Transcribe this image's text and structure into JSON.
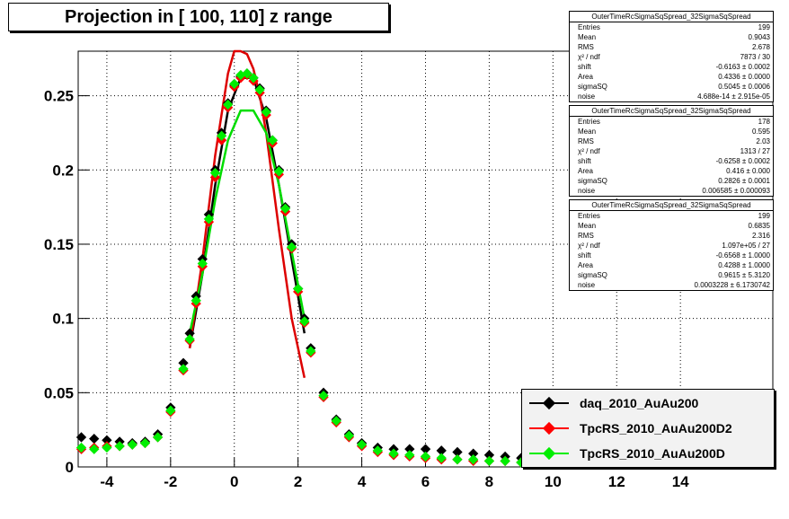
{
  "chart_data": {
    "type": "scatter",
    "title": "Projection in [ 100, 110] z range",
    "xlim": [
      -4.9,
      16.9
    ],
    "ylim": [
      0,
      0.28
    ],
    "x_ticks": [
      -4,
      -2,
      0,
      2,
      4,
      6,
      8,
      10,
      12,
      14
    ],
    "y_ticks": [
      0,
      0.05,
      0.1,
      0.15,
      0.2,
      0.25
    ],
    "y_tick_labels": [
      "0",
      "0.05",
      "0.1",
      "0.15",
      "0.2",
      "0.25"
    ],
    "grid": true,
    "legend_position": "bottom-right",
    "series": [
      {
        "name": "daq_2010_AuAu200",
        "color": "#000000",
        "x": [
          -4.8,
          -4.4,
          -4,
          -3.6,
          -3.2,
          -2.8,
          -2.4,
          -2,
          -1.6,
          -1.4,
          -1.2,
          -1,
          -0.8,
          -0.6,
          -0.4,
          -0.2,
          0,
          0.2,
          0.4,
          0.6,
          0.8,
          1,
          1.2,
          1.4,
          1.6,
          1.8,
          2,
          2.2,
          2.4,
          2.8,
          3.2,
          3.6,
          4,
          4.5,
          5,
          5.5,
          6,
          6.5,
          7,
          7.5,
          8,
          8.5,
          9,
          9.5,
          10
        ],
        "y": [
          0.02,
          0.019,
          0.018,
          0.017,
          0.016,
          0.017,
          0.022,
          0.04,
          0.07,
          0.09,
          0.115,
          0.14,
          0.17,
          0.2,
          0.225,
          0.245,
          0.257,
          0.263,
          0.265,
          0.262,
          0.255,
          0.24,
          0.22,
          0.2,
          0.175,
          0.15,
          0.12,
          0.1,
          0.08,
          0.05,
          0.032,
          0.022,
          0.016,
          0.013,
          0.012,
          0.012,
          0.012,
          0.011,
          0.01,
          0.009,
          0.008,
          0.007,
          0.006,
          0.005,
          0.004
        ]
      },
      {
        "name": "TpcRS_2010_AuAu200D2",
        "color": "#ff0000",
        "x": [
          -4.8,
          -4.4,
          -4,
          -3.6,
          -3.2,
          -2.8,
          -2.4,
          -2,
          -1.6,
          -1.4,
          -1.2,
          -1,
          -0.8,
          -0.6,
          -0.4,
          -0.2,
          0,
          0.2,
          0.4,
          0.6,
          0.8,
          1,
          1.2,
          1.4,
          1.6,
          1.8,
          2,
          2.2,
          2.4,
          2.8,
          3.2,
          3.6,
          4,
          4.5,
          5,
          5.5,
          6,
          6.5,
          7,
          7.5,
          8,
          8.5,
          9
        ],
        "y": [
          0.012,
          0.013,
          0.014,
          0.014,
          0.015,
          0.016,
          0.02,
          0.037,
          0.065,
          0.085,
          0.11,
          0.135,
          0.165,
          0.195,
          0.22,
          0.242,
          0.256,
          0.262,
          0.264,
          0.26,
          0.252,
          0.237,
          0.218,
          0.197,
          0.172,
          0.147,
          0.118,
          0.097,
          0.077,
          0.047,
          0.03,
          0.02,
          0.014,
          0.01,
          0.008,
          0.007,
          0.006,
          0.005,
          0.005,
          0.004,
          0.004,
          0.004,
          0.003
        ]
      },
      {
        "name": "TpcRS_2010_AuAu200D",
        "color": "#00ee00",
        "x": [
          -4.8,
          -4.4,
          -4,
          -3.6,
          -3.2,
          -2.8,
          -2.4,
          -2,
          -1.6,
          -1.4,
          -1.2,
          -1,
          -0.8,
          -0.6,
          -0.4,
          -0.2,
          0,
          0.2,
          0.4,
          0.6,
          0.8,
          1,
          1.2,
          1.4,
          1.6,
          1.8,
          2,
          2.2,
          2.4,
          2.8,
          3.2,
          3.6,
          4,
          4.5,
          5,
          5.5,
          6,
          6.5,
          7,
          7.5,
          8,
          8.5,
          9
        ],
        "y": [
          0.013,
          0.012,
          0.013,
          0.014,
          0.015,
          0.016,
          0.02,
          0.038,
          0.066,
          0.086,
          0.112,
          0.137,
          0.167,
          0.198,
          0.223,
          0.244,
          0.258,
          0.264,
          0.265,
          0.262,
          0.254,
          0.239,
          0.22,
          0.199,
          0.174,
          0.148,
          0.12,
          0.098,
          0.078,
          0.048,
          0.031,
          0.021,
          0.015,
          0.011,
          0.009,
          0.008,
          0.007,
          0.006,
          0.005,
          0.005,
          0.004,
          0.004,
          0.003
        ]
      }
    ],
    "fit_curves": [
      {
        "color": "#000000",
        "x": [
          -1.4,
          -1,
          -0.6,
          -0.2,
          0.2,
          0.6,
          1,
          1.4,
          1.8,
          2.2
        ],
        "y": [
          0.08,
          0.13,
          0.19,
          0.24,
          0.262,
          0.262,
          0.235,
          0.19,
          0.14,
          0.09
        ]
      },
      {
        "color": "#dd0000",
        "x": [
          -1.4,
          -1,
          -0.6,
          -0.2,
          0,
          0.2,
          0.4,
          0.6,
          0.8,
          1,
          1.4,
          1.8,
          2.2
        ],
        "y": [
          0.08,
          0.14,
          0.21,
          0.265,
          0.28,
          0.28,
          0.278,
          0.268,
          0.25,
          0.225,
          0.16,
          0.1,
          0.06
        ]
      },
      {
        "color": "#00dd00",
        "x": [
          -1.4,
          -1,
          -0.6,
          -0.2,
          0.2,
          0.6,
          1,
          1.4,
          1.8,
          2.2
        ],
        "y": [
          0.09,
          0.13,
          0.18,
          0.22,
          0.24,
          0.24,
          0.225,
          0.19,
          0.145,
          0.1
        ]
      }
    ]
  },
  "title": "Projection in [ 100, 110] z range",
  "stats": [
    {
      "title": "OuterTimeRcSigmaSqSpread_32SigmaSqSpread",
      "rows": [
        [
          "Entries",
          "199"
        ],
        [
          "Mean",
          "0.9043"
        ],
        [
          "RMS",
          "2.678"
        ],
        [
          "χ² / ndf",
          "7873 / 30"
        ],
        [
          "shift",
          "-0.6163 ± 0.0002"
        ],
        [
          "Area",
          "0.4336 ± 0.0000"
        ],
        [
          "sigmaSQ",
          "0.5045 ± 0.0006"
        ],
        [
          "noise",
          "4.688e-14 ± 2.915e-05"
        ]
      ]
    },
    {
      "title": "OuterTimeRcSigmaSqSpread_32SigmaSqSpread",
      "rows": [
        [
          "Entries",
          "178"
        ],
        [
          "Mean",
          "0.595"
        ],
        [
          "RMS",
          "2.03"
        ],
        [
          "χ² / ndf",
          "1313 / 27"
        ],
        [
          "shift",
          "-0.6258 ± 0.0002"
        ],
        [
          "Area",
          "0.416 ± 0.000"
        ],
        [
          "sigmaSQ",
          "0.2826 ± 0.0001"
        ],
        [
          "noise",
          "0.006585 ± 0.000093"
        ]
      ]
    },
    {
      "title": "OuterTimeRcSigmaSqSpread_32SigmaSqSpread",
      "rows": [
        [
          "Entries",
          "199"
        ],
        [
          "Mean",
          "0.6835"
        ],
        [
          "RMS",
          "2.316"
        ],
        [
          "χ² / ndf",
          "1.097e+05 / 27"
        ],
        [
          "shift",
          "-0.6568 ± 1.0000"
        ],
        [
          "Area",
          "0.4288 ± 1.0000"
        ],
        [
          "sigmaSQ",
          "0.9615 ± 5.3120"
        ],
        [
          "noise",
          "0.0003228 ± 6.1730742"
        ]
      ]
    }
  ],
  "legend": [
    {
      "label": "daq_2010_AuAu200",
      "color": "#000000"
    },
    {
      "label": "TpcRS_2010_AuAu200D2",
      "color": "#ff0000"
    },
    {
      "label": "TpcRS_2010_AuAu200D",
      "color": "#00ee00"
    }
  ]
}
